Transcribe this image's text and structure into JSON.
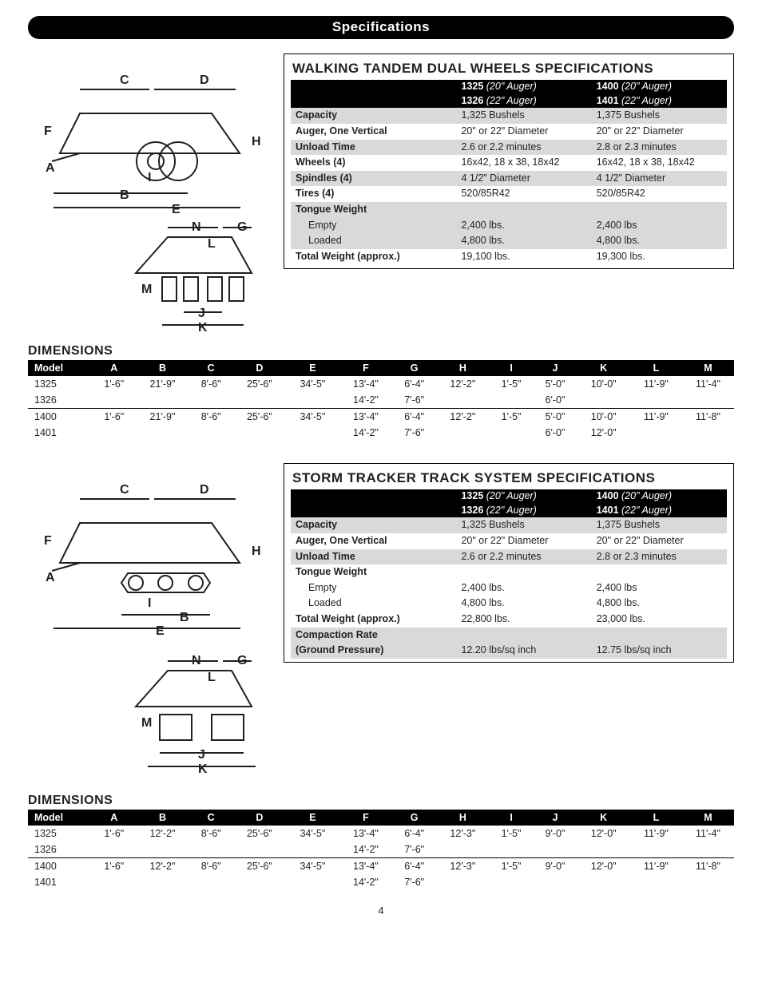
{
  "page": {
    "banner": "Specifications",
    "number": "4"
  },
  "diagrams": {
    "side_labels": [
      "A",
      "B",
      "C",
      "D",
      "E",
      "F",
      "G",
      "H",
      "I",
      "J",
      "K",
      "L",
      "M",
      "N"
    ]
  },
  "spec1": {
    "title": "WALKING TANDEM DUAL WHEELS SPECIFICATIONS",
    "col_heads": {
      "c2a": "1325",
      "c2b": "(20\" Auger)",
      "c2c": "1326",
      "c2d": "(22\" Auger)",
      "c3a": "1400",
      "c3b": "(20\" Auger)",
      "c3c": "1401",
      "c3d": "(22\" Auger)"
    },
    "rows": [
      {
        "shade": true,
        "label": "Capacity",
        "v1": "1,325 Bushels",
        "v2": "1,375 Bushels"
      },
      {
        "shade": false,
        "label": "Auger, One Vertical",
        "v1": "20\" or 22\" Diameter",
        "v2": "20\" or 22\" Diameter"
      },
      {
        "shade": true,
        "label": "Unload Time",
        "v1": "2.6 or 2.2 minutes",
        "v2": "2.8 or 2.3 minutes"
      },
      {
        "shade": false,
        "label": "Wheels (4)",
        "v1": "16x42, 18 x 38, 18x42",
        "v2": "16x42, 18 x 38, 18x42"
      },
      {
        "shade": true,
        "label": "Spindles (4)",
        "v1": "4 1/2\" Diameter",
        "v2": "4 1/2\" Diameter"
      },
      {
        "shade": false,
        "label": "Tires (4)",
        "v1": "520/85R42",
        "v2": "520/85R42"
      },
      {
        "shade": true,
        "label": "Tongue Weight",
        "v1": "",
        "v2": ""
      },
      {
        "shade": true,
        "indent": true,
        "label": "Empty",
        "v1": "2,400 lbs.",
        "v2": "2,400 lbs"
      },
      {
        "shade": true,
        "indent": true,
        "label": "Loaded",
        "v1": "4,800 lbs.",
        "v2": "4,800 lbs."
      },
      {
        "shade": false,
        "label": "Total Weight (approx.)",
        "v1": "19,100 lbs.",
        "v2": "19,300 lbs."
      }
    ]
  },
  "dim1": {
    "heading": "DIMENSIONS",
    "columns": [
      "Model",
      "A",
      "B",
      "C",
      "D",
      "E",
      "F",
      "G",
      "H",
      "I",
      "J",
      "K",
      "L",
      "M"
    ],
    "rows": [
      [
        "1325",
        "1'-6\"",
        "21'-9\"",
        "8'-6\"",
        "25'-6\"",
        "34'-5\"",
        "13'-4\"",
        "6'-4\"",
        "12'-2\"",
        "1'-5\"",
        "5'-0\"",
        "10'-0\"",
        "11'-9\"",
        "11'-4\""
      ],
      [
        "1326",
        "",
        "",
        "",
        "",
        "",
        "14'-2\"",
        "7'-6\"",
        "",
        "",
        "6'-0\"",
        "",
        "",
        ""
      ],
      [
        "1400",
        "1'-6\"",
        "21'-9\"",
        "8'-6\"",
        "25'-6\"",
        "34'-5\"",
        "13'-4\"",
        "6'-4\"",
        "12'-2\"",
        "1'-5\"",
        "5'-0\"",
        "10'-0\"",
        "11'-9\"",
        "11'-8\""
      ],
      [
        "1401",
        "",
        "",
        "",
        "",
        "",
        "14'-2\"",
        "7'-6\"",
        "",
        "",
        "6'-0\"",
        "12'-0\"",
        "",
        ""
      ]
    ],
    "sep_rows": [
      2
    ]
  },
  "spec2": {
    "title": "STORM TRACKER TRACK SYSTEM SPECIFICATIONS",
    "col_heads": {
      "c2a": "1325",
      "c2b": "(20\" Auger)",
      "c2c": "1326",
      "c2d": "(22\" Auger)",
      "c3a": "1400",
      "c3b": "(20\" Auger)",
      "c3c": "1401",
      "c3d": "(22\" Auger)"
    },
    "rows": [
      {
        "shade": true,
        "label": "Capacity",
        "v1": "1,325 Bushels",
        "v2": "1,375 Bushels"
      },
      {
        "shade": false,
        "label": "Auger, One Vertical",
        "v1": "20\" or 22\" Diameter",
        "v2": "20\" or 22\" Diameter"
      },
      {
        "shade": true,
        "label": "Unload Time",
        "v1": "2.6 or 2.2 minutes",
        "v2": "2.8 or 2.3 minutes"
      },
      {
        "shade": false,
        "label": "Tongue Weight",
        "v1": "",
        "v2": ""
      },
      {
        "shade": false,
        "indent": true,
        "label": "Empty",
        "v1": "2,400 lbs.",
        "v2": "2,400 lbs"
      },
      {
        "shade": false,
        "indent": true,
        "label": "Loaded",
        "v1": "4,800 lbs.",
        "v2": "4,800 lbs."
      },
      {
        "shade": false,
        "label": "Total Weight (approx.)",
        "v1": "22,800 lbs.",
        "v2": "23,000 lbs."
      },
      {
        "shade": true,
        "label": "Compaction Rate",
        "v1": "",
        "v2": ""
      },
      {
        "shade": true,
        "label": "(Ground Pressure)",
        "v1": "12.20 lbs/sq inch",
        "v2": "12.75 lbs/sq inch"
      }
    ]
  },
  "dim2": {
    "heading": "DIMENSIONS",
    "columns": [
      "Model",
      "A",
      "B",
      "C",
      "D",
      "E",
      "F",
      "G",
      "H",
      "I",
      "J",
      "K",
      "L",
      "M"
    ],
    "rows": [
      [
        "1325",
        "1'-6\"",
        "12'-2\"",
        "8'-6\"",
        "25'-6\"",
        "34'-5\"",
        "13'-4\"",
        "6'-4\"",
        "12'-3\"",
        "1'-5\"",
        "9'-0\"",
        "12'-0\"",
        "11'-9\"",
        "11'-4\""
      ],
      [
        "1326",
        "",
        "",
        "",
        "",
        "",
        "14'-2\"",
        "7'-6\"",
        "",
        "",
        "",
        "",
        "",
        ""
      ],
      [
        "1400",
        "1'-6\"",
        "12'-2\"",
        "8'-6\"",
        "25'-6\"",
        "34'-5\"",
        "13'-4\"",
        "6'-4\"",
        "12'-3\"",
        "1'-5\"",
        "9'-0\"",
        "12'-0\"",
        "11'-9\"",
        "11'-8\""
      ],
      [
        "1401",
        "",
        "",
        "",
        "",
        "",
        "14'-2\"",
        "7'-6\"",
        "",
        "",
        "",
        "",
        "",
        ""
      ]
    ],
    "sep_rows": [
      2
    ]
  },
  "style": {
    "bg": "#ffffff",
    "ink": "#231f20",
    "banner_bg": "#000000",
    "banner_fg": "#ffffff",
    "shade": "#d9d9d9",
    "border": "#000000"
  }
}
